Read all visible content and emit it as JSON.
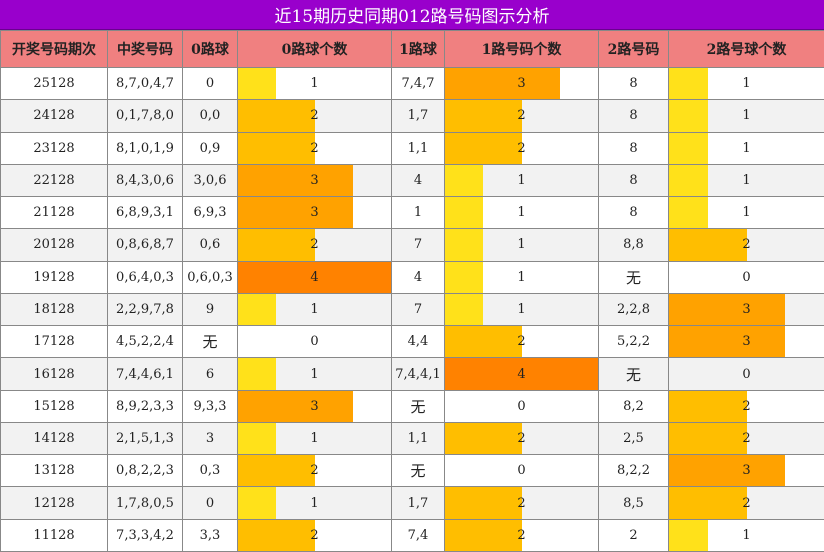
{
  "title": "近15期历史同期012路号码图示分析",
  "headers": [
    "开奖号码期次",
    "中奖号码",
    "0路球",
    "0路球个数",
    "1路球",
    "1路号码个数",
    "2路号码",
    "2路号球个数"
  ],
  "max_count": 4,
  "count_colors": {
    "1": "#ffe11a",
    "2": "#ffbe00",
    "3": "#ffa200",
    "4": "#ff8200"
  },
  "rows": [
    {
      "period": "25128",
      "numbers": "8,7,0,4,7",
      "r0": "0",
      "c0": 1,
      "r1": "7,4,7",
      "c1": 3,
      "r2": "8",
      "c2": 1
    },
    {
      "period": "24128",
      "numbers": "0,1,7,8,0",
      "r0": "0,0",
      "c0": 2,
      "r1": "1,7",
      "c1": 2,
      "r2": "8",
      "c2": 1
    },
    {
      "period": "23128",
      "numbers": "8,1,0,1,9",
      "r0": "0,9",
      "c0": 2,
      "r1": "1,1",
      "c1": 2,
      "r2": "8",
      "c2": 1
    },
    {
      "period": "22128",
      "numbers": "8,4,3,0,6",
      "r0": "3,0,6",
      "c0": 3,
      "r1": "4",
      "c1": 1,
      "r2": "8",
      "c2": 1
    },
    {
      "period": "21128",
      "numbers": "6,8,9,3,1",
      "r0": "6,9,3",
      "c0": 3,
      "r1": "1",
      "c1": 1,
      "r2": "8",
      "c2": 1
    },
    {
      "period": "20128",
      "numbers": "0,8,6,8,7",
      "r0": "0,6",
      "c0": 2,
      "r1": "7",
      "c1": 1,
      "r2": "8,8",
      "c2": 2
    },
    {
      "period": "19128",
      "numbers": "0,6,4,0,3",
      "r0": "0,6,0,3",
      "c0": 4,
      "r1": "4",
      "c1": 1,
      "r2": "无",
      "c2": 0
    },
    {
      "period": "18128",
      "numbers": "2,2,9,7,8",
      "r0": "9",
      "c0": 1,
      "r1": "7",
      "c1": 1,
      "r2": "2,2,8",
      "c2": 3
    },
    {
      "period": "17128",
      "numbers": "4,5,2,2,4",
      "r0": "无",
      "c0": 0,
      "r1": "4,4",
      "c1": 2,
      "r2": "5,2,2",
      "c2": 3
    },
    {
      "period": "16128",
      "numbers": "7,4,4,6,1",
      "r0": "6",
      "c0": 1,
      "r1": "7,4,4,1",
      "c1": 4,
      "r2": "无",
      "c2": 0
    },
    {
      "period": "15128",
      "numbers": "8,9,2,3,3",
      "r0": "9,3,3",
      "c0": 3,
      "r1": "无",
      "c1": 0,
      "r2": "8,2",
      "c2": 2
    },
    {
      "period": "14128",
      "numbers": "2,1,5,1,3",
      "r0": "3",
      "c0": 1,
      "r1": "1,1",
      "c1": 2,
      "r2": "2,5",
      "c2": 2
    },
    {
      "period": "13128",
      "numbers": "0,8,2,2,3",
      "r0": "0,3",
      "c0": 2,
      "r1": "无",
      "c1": 0,
      "r2": "8,2,2",
      "c2": 3
    },
    {
      "period": "12128",
      "numbers": "1,7,8,0,5",
      "r0": "0",
      "c0": 1,
      "r1": "1,7",
      "c1": 2,
      "r2": "8,5",
      "c2": 2
    },
    {
      "period": "11128",
      "numbers": "7,3,3,4,2",
      "r0": "3,3",
      "c0": 2,
      "r1": "7,4",
      "c1": 2,
      "r2": "2",
      "c2": 1
    }
  ]
}
